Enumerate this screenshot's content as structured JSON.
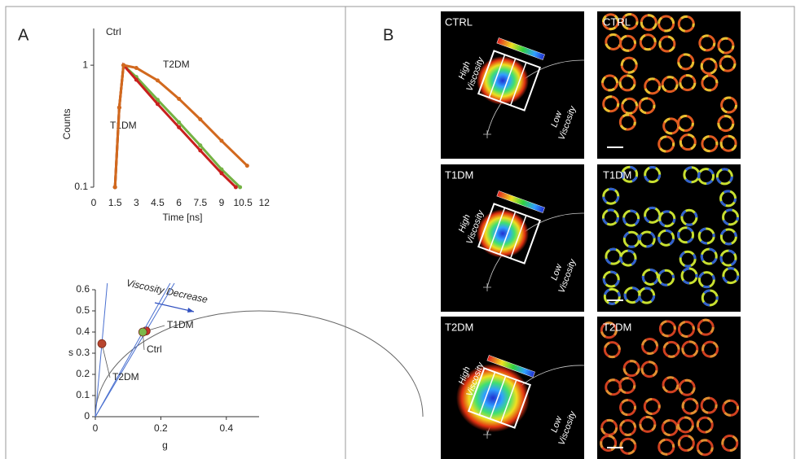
{
  "chart_data": [
    {
      "type": "line",
      "log_y": true,
      "x_label": "Time [ns]",
      "y_label": "Counts",
      "xlim": [
        0,
        12.5
      ],
      "xticks": [
        0,
        1.5,
        3,
        4.5,
        6,
        7.5,
        9,
        10.5,
        12
      ],
      "ylim": [
        0.1,
        2
      ],
      "yticks": [
        0.1,
        1
      ],
      "series": [
        {
          "name": "Ctrl",
          "color": "#74b243",
          "x": [
            1.5,
            1.8,
            2.1,
            3,
            4.5,
            6,
            7.5,
            9,
            10.3
          ],
          "values": [
            0.1,
            0.45,
            1,
            0.8,
            0.52,
            0.34,
            0.22,
            0.14,
            0.1
          ]
        },
        {
          "name": "T1DM",
          "color": "#c8201e",
          "x": [
            1.5,
            1.8,
            2.1,
            3,
            4.5,
            6,
            7.5,
            9,
            10.0
          ],
          "values": [
            0.1,
            0.45,
            1,
            0.76,
            0.48,
            0.31,
            0.2,
            0.13,
            0.1
          ]
        },
        {
          "name": "T2DM",
          "color": "#d2691e",
          "x": [
            1.5,
            1.8,
            2.1,
            3,
            4.5,
            6,
            7.5,
            9,
            10.8
          ],
          "values": [
            0.1,
            0.45,
            1,
            0.95,
            0.75,
            0.53,
            0.36,
            0.24,
            0.15
          ]
        }
      ]
    },
    {
      "type": "scatter",
      "x_label": "g",
      "y_label": "s",
      "annotation": "Viscosity Decrease",
      "xlim": [
        0,
        0.5
      ],
      "xticks": [
        0,
        0.2,
        0.4
      ],
      "ylim": [
        0,
        0.6
      ],
      "yticks": [
        0,
        0.1,
        0.2,
        0.3,
        0.4,
        0.5,
        0.6
      ],
      "series": [
        {
          "name": "T1DM",
          "color": "#c8342a",
          "x": [
            0.155
          ],
          "values": [
            0.405
          ]
        },
        {
          "name": "Ctrl",
          "color": "#7cb84a",
          "x": [
            0.145
          ],
          "values": [
            0.4
          ]
        },
        {
          "name": "T2DM",
          "color": "#b8452e",
          "x": [
            0.02
          ],
          "values": [
            0.345
          ]
        }
      ]
    }
  ],
  "panel_letters": [
    "A",
    "B"
  ],
  "panel_b": {
    "rows": [
      {
        "label": "CTRL"
      },
      {
        "label": "T1DM"
      },
      {
        "label": "T2DM"
      }
    ],
    "high": [
      "High",
      "Viscosity"
    ],
    "low": [
      "Low",
      "Viscosity"
    ]
  }
}
